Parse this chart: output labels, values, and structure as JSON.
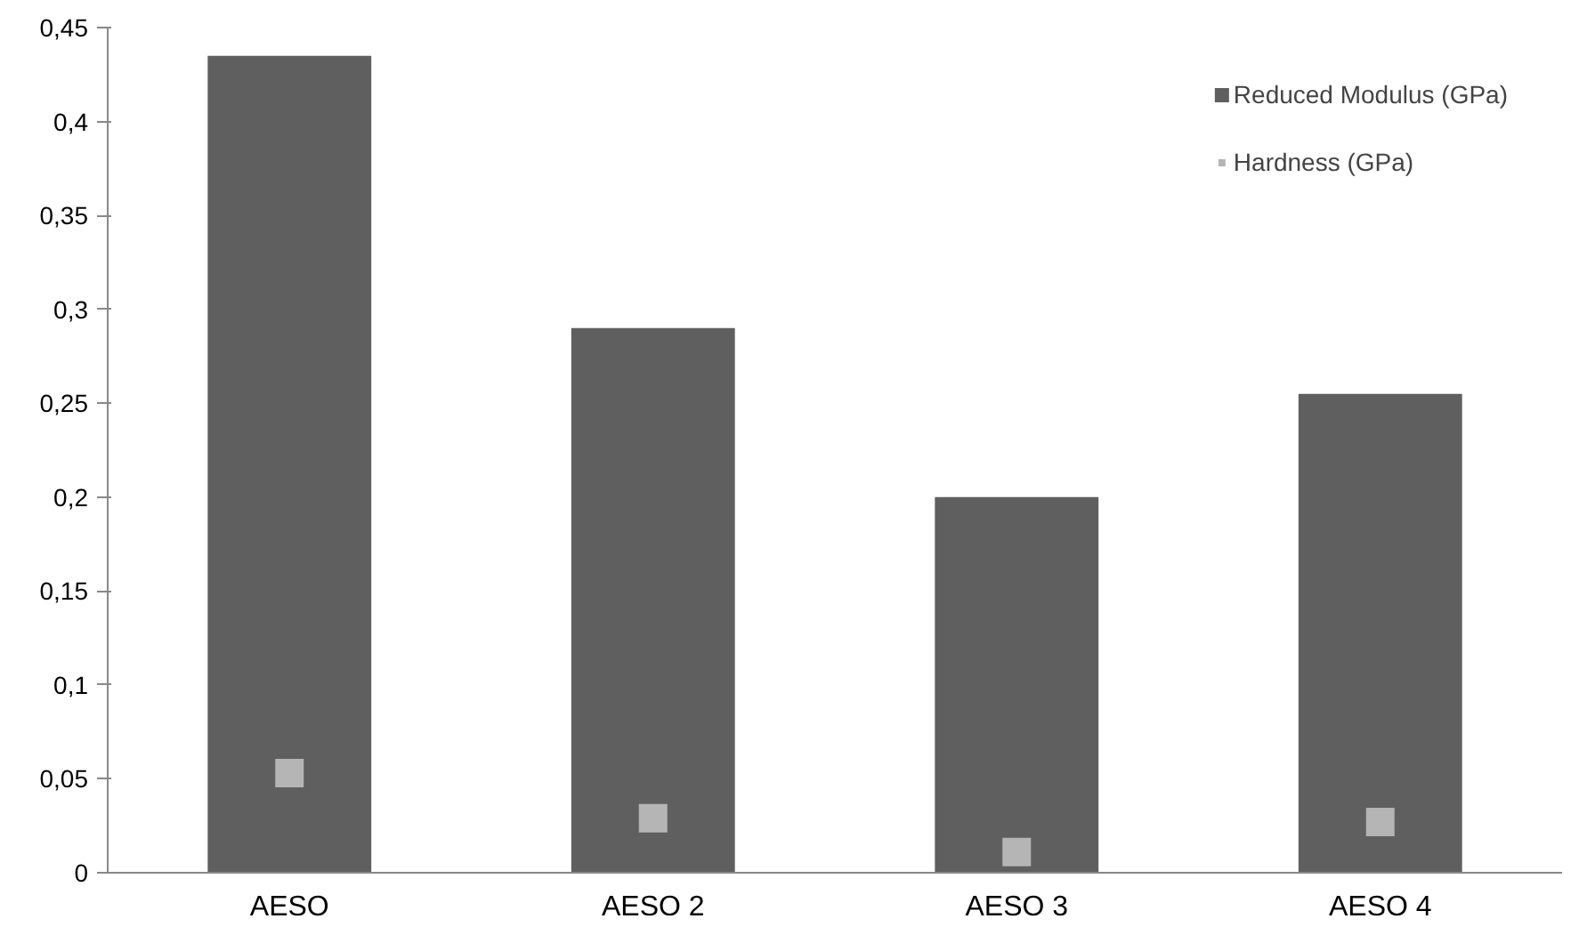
{
  "chart_data": {
    "type": "bar",
    "categories": [
      "AESO",
      "AESO 2",
      "AESO 3",
      "AESO 4"
    ],
    "series": [
      {
        "name": "Reduced Modulus (GPa)",
        "color": "#5f5f5f",
        "values": [
          0.435,
          0.29,
          0.2,
          0.255
        ]
      },
      {
        "name": "Hardness (GPa)",
        "type": "scatter",
        "color": "#b5b5b5",
        "values": [
          0.053,
          0.029,
          0.011,
          0.027
        ]
      }
    ],
    "ylim": [
      0,
      0.45
    ],
    "yticks": [
      {
        "value": 0,
        "label": "0"
      },
      {
        "value": 0.05,
        "label": "0,05"
      },
      {
        "value": 0.1,
        "label": "0,1"
      },
      {
        "value": 0.15,
        "label": "0,15"
      },
      {
        "value": 0.2,
        "label": "0,2"
      },
      {
        "value": 0.25,
        "label": "0,25"
      },
      {
        "value": 0.3,
        "label": "0,3"
      },
      {
        "value": 0.35,
        "label": "0,35"
      },
      {
        "value": 0.4,
        "label": "0,4"
      },
      {
        "value": 0.45,
        "label": "0,45"
      }
    ],
    "grid": false,
    "legend": "top right",
    "marker": "square"
  }
}
